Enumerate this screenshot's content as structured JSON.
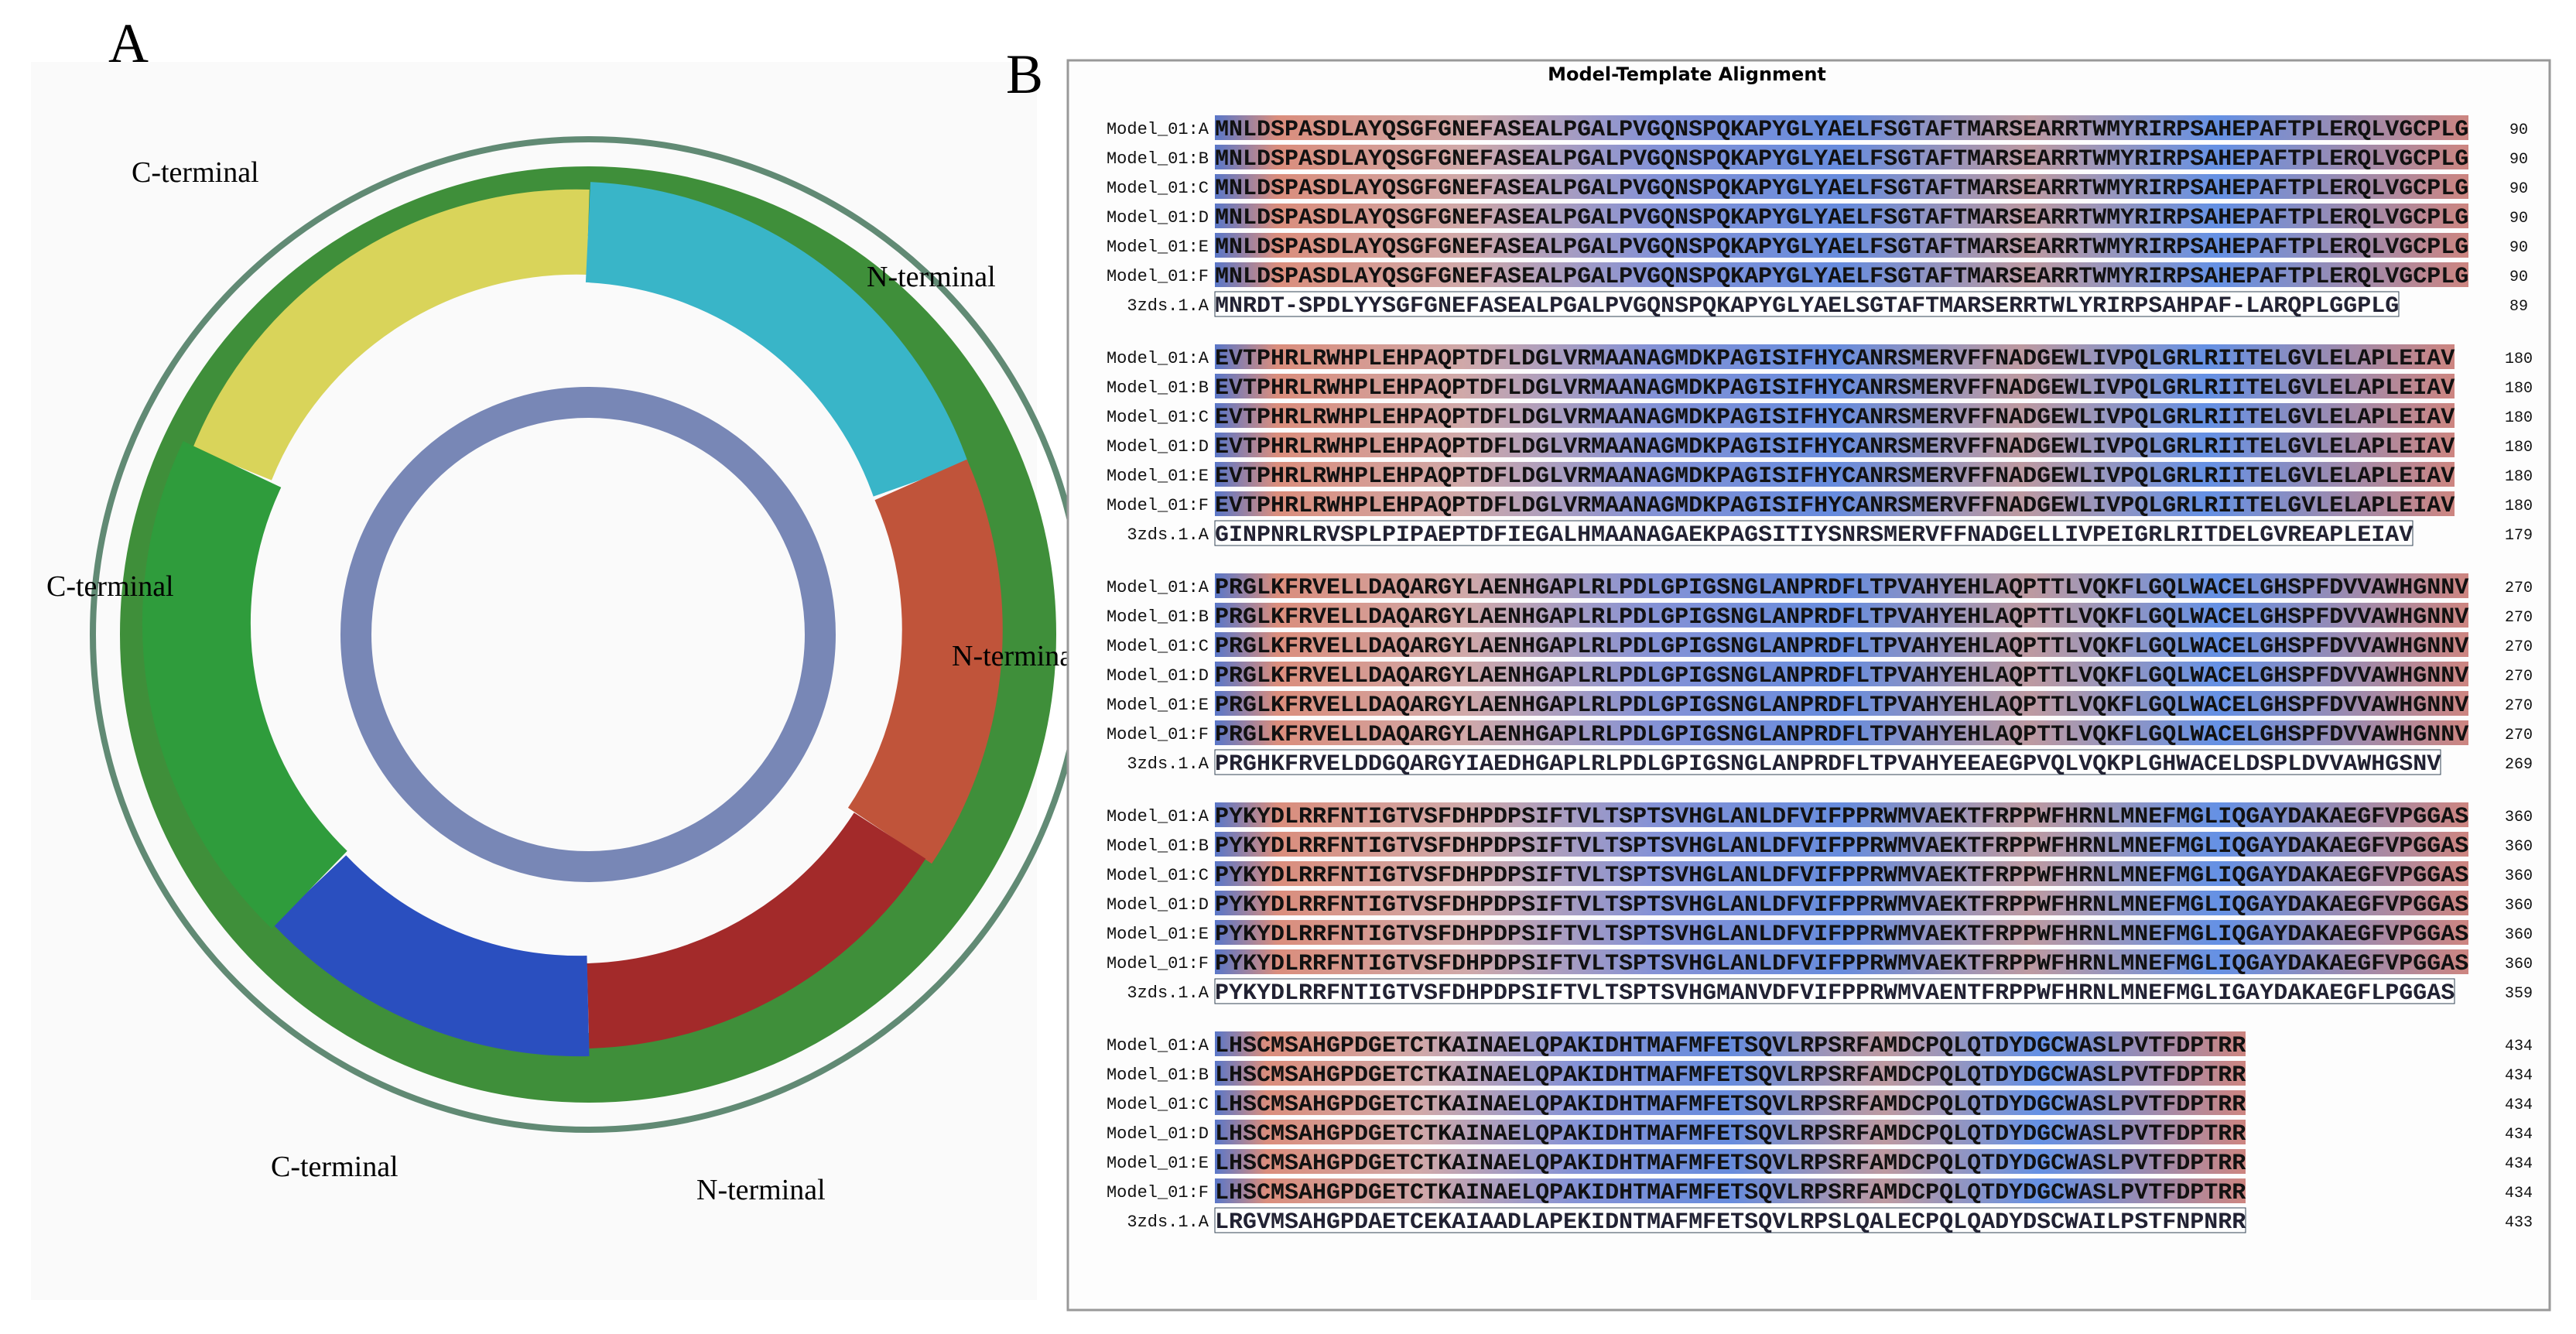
{
  "panel_a": {
    "label": "A",
    "annotations": [
      "C-terminal",
      "N-terminal",
      "C-terminal",
      "N-terminal",
      "C-terminal",
      "N-terminal"
    ]
  },
  "panel_b": {
    "label": "B",
    "title": "Model-Template Alignment",
    "blocks": [
      {
        "rows": [
          {
            "name": "Model_01:A",
            "seq": "MNLDSPASDLAYQSGFGNEFASEALPGALPVGQNSPQKAPYGLYAELFSGTAFTMARSEARRTWMYRIRPSAHEPAFTPLERQLVGCPLG",
            "end": 90
          },
          {
            "name": "Model_01:B",
            "seq": "MNLDSPASDLAYQSGFGNEFASEALPGALPVGQNSPQKAPYGLYAELFSGTAFTMARSEARRTWMYRIRPSAHEPAFTPLERQLVGCPLG",
            "end": 90
          },
          {
            "name": "Model_01:C",
            "seq": "MNLDSPASDLAYQSGFGNEFASEALPGALPVGQNSPQKAPYGLYAELFSGTAFTMARSEARRTWMYRIRPSAHEPAFTPLERQLVGCPLG",
            "end": 90
          },
          {
            "name": "Model_01:D",
            "seq": "MNLDSPASDLAYQSGFGNEFASEALPGALPVGQNSPQKAPYGLYAELFSGTAFTMARSEARRTWMYRIRPSAHEPAFTPLERQLVGCPLG",
            "end": 90
          },
          {
            "name": "Model_01:E",
            "seq": "MNLDSPASDLAYQSGFGNEFASEALPGALPVGQNSPQKAPYGLYAELFSGTAFTMARSEARRTWMYRIRPSAHEPAFTPLERQLVGCPLG",
            "end": 90
          },
          {
            "name": "Model_01:F",
            "seq": "MNLDSPASDLAYQSGFGNEFASEALPGALPVGQNSPQKAPYGLYAELFSGTAFTMARSEARRTWMYRIRPSAHEPAFTPLERQLVGCPLG",
            "end": 90
          },
          {
            "name": "3zds.1.A",
            "seq": "MNRDT-SPDLYYSGFGNEFASEALPGALPVGQNSPQKAPYGLYAELSGTAFTMARSERRTWLYRIRPSAHPAF-LARQPLGGPLG",
            "end": 89
          }
        ]
      },
      {
        "rows": [
          {
            "name": "Model_01:A",
            "seq": "EVTPHRLRWHPLEHPAQPTDFLDGLVRMAANAGMDKPAGISIFHYCANRSMERVFFNADGEWLIVPQLGRLRIITELGVLELAPLEIAV",
            "end": 180
          },
          {
            "name": "Model_01:B",
            "seq": "EVTPHRLRWHPLEHPAQPTDFLDGLVRMAANAGMDKPAGISIFHYCANRSMERVFFNADGEWLIVPQLGRLRIITELGVLELAPLEIAV",
            "end": 180
          },
          {
            "name": "Model_01:C",
            "seq": "EVTPHRLRWHPLEHPAQPTDFLDGLVRMAANAGMDKPAGISIFHYCANRSMERVFFNADGEWLIVPQLGRLRIITELGVLELAPLEIAV",
            "end": 180
          },
          {
            "name": "Model_01:D",
            "seq": "EVTPHRLRWHPLEHPAQPTDFLDGLVRMAANAGMDKPAGISIFHYCANRSMERVFFNADGEWLIVPQLGRLRIITELGVLELAPLEIAV",
            "end": 180
          },
          {
            "name": "Model_01:E",
            "seq": "EVTPHRLRWHPLEHPAQPTDFLDGLVRMAANAGMDKPAGISIFHYCANRSMERVFFNADGEWLIVPQLGRLRIITELGVLELAPLEIAV",
            "end": 180
          },
          {
            "name": "Model_01:F",
            "seq": "EVTPHRLRWHPLEHPAQPTDFLDGLVRMAANAGMDKPAGISIFHYCANRSMERVFFNADGEWLIVPQLGRLRIITELGVLELAPLEIAV",
            "end": 180
          },
          {
            "name": "3zds.1.A",
            "seq": "GINPNRLRVSPLPIPAEPTDFIEGALHMAANAGAEKPAGSITIYSNRSMERVFFNADGELLIVPEIGRLRITDELGVREAPLEIAV",
            "end": 179
          }
        ]
      },
      {
        "rows": [
          {
            "name": "Model_01:A",
            "seq": "PRGLKFRVELLDAQARGYLAENHGAPLRLPDLGPIGSNGLANPRDFLTPVAHYEHLAQPTTLVQKFLGQLWACELGHSPFDVVAWHGNNV",
            "end": 270
          },
          {
            "name": "Model_01:B",
            "seq": "PRGLKFRVELLDAQARGYLAENHGAPLRLPDLGPIGSNGLANPRDFLTPVAHYEHLAQPTTLVQKFLGQLWACELGHSPFDVVAWHGNNV",
            "end": 270
          },
          {
            "name": "Model_01:C",
            "seq": "PRGLKFRVELLDAQARGYLAENHGAPLRLPDLGPIGSNGLANPRDFLTPVAHYEHLAQPTTLVQKFLGQLWACELGHSPFDVVAWHGNNV",
            "end": 270
          },
          {
            "name": "Model_01:D",
            "seq": "PRGLKFRVELLDAQARGYLAENHGAPLRLPDLGPIGSNGLANPRDFLTPVAHYEHLAQPTTLVQKFLGQLWACELGHSPFDVVAWHGNNV",
            "end": 270
          },
          {
            "name": "Model_01:E",
            "seq": "PRGLKFRVELLDAQARGYLAENHGAPLRLPDLGPIGSNGLANPRDFLTPVAHYEHLAQPTTLVQKFLGQLWACELGHSPFDVVAWHGNNV",
            "end": 270
          },
          {
            "name": "Model_01:F",
            "seq": "PRGLKFRVELLDAQARGYLAENHGAPLRLPDLGPIGSNGLANPRDFLTPVAHYEHLAQPTTLVQKFLGQLWACELGHSPFDVVAWHGNNV",
            "end": 270
          },
          {
            "name": "3zds.1.A",
            "seq": "PRGHKFRVELDDGQARGYIAEDHGAPLRLPDLGPIGSNGLANPRDFLTPVAHYEEAEGPVQLVQKPLGHWACELDSPLDVVAWHGSNV",
            "end": 269
          }
        ]
      },
      {
        "rows": [
          {
            "name": "Model_01:A",
            "seq": "PYKYDLRRFNTIGTVSFDHPDPSIFTVLTSPTSVHGLANLDFVIFPPRWMVAEKTFRPPWFHRNLMNEFMGLIQGAYDAKAEGFVPGGAS",
            "end": 360
          },
          {
            "name": "Model_01:B",
            "seq": "PYKYDLRRFNTIGTVSFDHPDPSIFTVLTSPTSVHGLANLDFVIFPPRWMVAEKTFRPPWFHRNLMNEFMGLIQGAYDAKAEGFVPGGAS",
            "end": 360
          },
          {
            "name": "Model_01:C",
            "seq": "PYKYDLRRFNTIGTVSFDHPDPSIFTVLTSPTSVHGLANLDFVIFPPRWMVAEKTFRPPWFHRNLMNEFMGLIQGAYDAKAEGFVPGGAS",
            "end": 360
          },
          {
            "name": "Model_01:D",
            "seq": "PYKYDLRRFNTIGTVSFDHPDPSIFTVLTSPTSVHGLANLDFVIFPPRWMVAEKTFRPPWFHRNLMNEFMGLIQGAYDAKAEGFVPGGAS",
            "end": 360
          },
          {
            "name": "Model_01:E",
            "seq": "PYKYDLRRFNTIGTVSFDHPDPSIFTVLTSPTSVHGLANLDFVIFPPRWMVAEKTFRPPWFHRNLMNEFMGLIQGAYDAKAEGFVPGGAS",
            "end": 360
          },
          {
            "name": "Model_01:F",
            "seq": "PYKYDLRRFNTIGTVSFDHPDPSIFTVLTSPTSVHGLANLDFVIFPPRWMVAEKTFRPPWFHRNLMNEFMGLIQGAYDAKAEGFVPGGAS",
            "end": 360
          },
          {
            "name": "3zds.1.A",
            "seq": "PYKYDLRRFNTIGTVSFDHPDPSIFTVLTSPTSVHGMANVDFVIFPPRWMVAENTFRPPWFHRNLMNEFMGLIGAYDAKAEGFLPGGAS",
            "end": 359
          }
        ]
      },
      {
        "rows": [
          {
            "name": "Model_01:A",
            "seq": "LHSCMSAHGPDGETCTKAINAELQPAKIDHTMAFMFETSQVLRPSRFAMDCPQLQTDYDGCWASLPVTFDPTRR",
            "end": 434
          },
          {
            "name": "Model_01:B",
            "seq": "LHSCMSAHGPDGETCTKAINAELQPAKIDHTMAFMFETSQVLRPSRFAMDCPQLQTDYDGCWASLPVTFDPTRR",
            "end": 434
          },
          {
            "name": "Model_01:C",
            "seq": "LHSCMSAHGPDGETCTKAINAELQPAKIDHTMAFMFETSQVLRPSRFAMDCPQLQTDYDGCWASLPVTFDPTRR",
            "end": 434
          },
          {
            "name": "Model_01:D",
            "seq": "LHSCMSAHGPDGETCTKAINAELQPAKIDHTMAFMFETSQVLRPSRFAMDCPQLQTDYDGCWASLPVTFDPTRR",
            "end": 434
          },
          {
            "name": "Model_01:E",
            "seq": "LHSCMSAHGPDGETCTKAINAELQPAKIDHTMAFMFETSQVLRPSRFAMDCPQLQTDYDGCWASLPVTFDPTRR",
            "end": 434
          },
          {
            "name": "Model_01:F",
            "seq": "LHSCMSAHGPDGETCTKAINAELQPAKIDHTMAFMFETSQVLRPSRFAMDCPQLQTDYDGCWASLPVTFDPTRR",
            "end": 434
          },
          {
            "name": "3zds.1.A",
            "seq": "LRGVMSAHGPDAETCEKAIAADLAPEKIDNTMAFMFETSQVLRPSLQALECPQLQADYDSCWAILPSTFNPNRR",
            "end": 433
          }
        ]
      }
    ]
  }
}
